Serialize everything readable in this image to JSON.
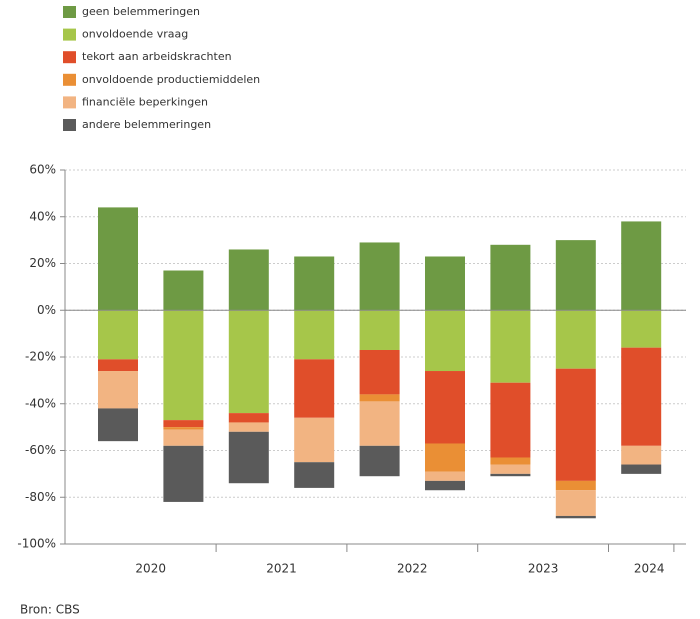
{
  "chart_data": {
    "type": "bar",
    "stacked": true,
    "categories": [
      null,
      null,
      null,
      null,
      null,
      null,
      null,
      null,
      null
    ],
    "groups": [
      {
        "label": "2020",
        "size": 2
      },
      {
        "label": "2021",
        "size": 2
      },
      {
        "label": "2022",
        "size": 2
      },
      {
        "label": "2023",
        "size": 2
      },
      {
        "label": "2024",
        "size": 1
      }
    ],
    "series": [
      {
        "name": "geen belemmeringen",
        "color": "#6e9a44",
        "values": [
          44,
          17,
          26,
          23,
          29,
          23,
          28,
          30,
          38
        ]
      },
      {
        "name": "onvoldoende vraag",
        "color": "#a6c64a",
        "values": [
          -21,
          -47,
          -44,
          -21,
          -17,
          -26,
          -31,
          -25,
          -16
        ]
      },
      {
        "name": "tekort aan arbeidskrachten",
        "color": "#e04e2a",
        "values": [
          -5,
          -3,
          -4,
          -25,
          -19,
          -31,
          -32,
          -48,
          -42
        ]
      },
      {
        "name": "onvoldoende productiemiddelen",
        "color": "#ea8f35",
        "values": [
          0,
          -1,
          0,
          0,
          -3,
          -12,
          -3,
          -4,
          0
        ]
      },
      {
        "name": "financiële beperkingen",
        "color": "#f2b482",
        "values": [
          -16,
          -7,
          -4,
          -19,
          -19,
          -4,
          -4,
          -11,
          -8
        ]
      },
      {
        "name": "andere belemmeringen",
        "color": "#5a5a5a",
        "values": [
          -14,
          -24,
          -22,
          -11,
          -13,
          -4,
          -1,
          -1,
          -4
        ]
      }
    ],
    "ylim": [
      -100,
      60
    ],
    "yticks": [
      {
        "value": -100,
        "label": "-100%"
      },
      {
        "value": -80,
        "label": "-80%"
      },
      {
        "value": -60,
        "label": "-60%"
      },
      {
        "value": -40,
        "label": "-40%"
      },
      {
        "value": -20,
        "label": "-20%"
      },
      {
        "value": 0,
        "label": "0%"
      },
      {
        "value": 20,
        "label": "20%"
      },
      {
        "value": 40,
        "label": "40%"
      },
      {
        "value": 60,
        "label": "60%"
      }
    ],
    "grid": true,
    "legend": "top-left",
    "source": "Bron: CBS"
  }
}
